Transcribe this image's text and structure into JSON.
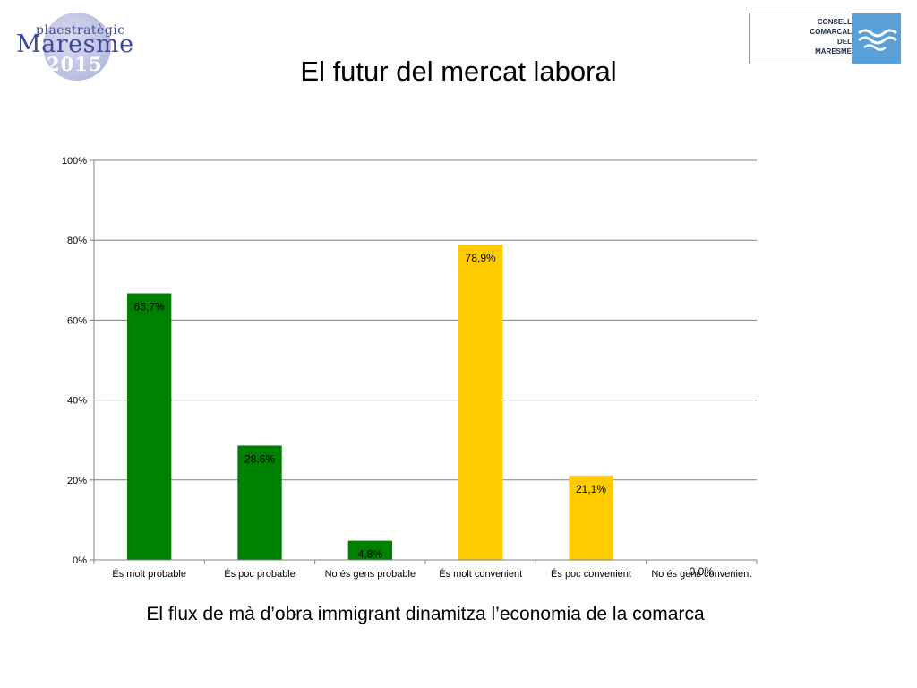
{
  "page_title": "El futur del mercat laboral",
  "caption": "El flux de mà d’obra immigrant dinamitza l’economia de la comarca",
  "logo_left": {
    "line1": "plaestratègic",
    "line2": "Maresme",
    "line3": "2015"
  },
  "logo_right": {
    "lines": [
      "CONSELL",
      "COMARCAL",
      "DEL",
      "MARESME"
    ]
  },
  "colors": {
    "green": "#008000",
    "yellow": "#ffcc00",
    "grid": "#808080",
    "axis": "#808080"
  },
  "chart_data": {
    "type": "bar",
    "title": "",
    "xlabel": "",
    "ylabel": "",
    "categories": [
      "És molt probable",
      "És poc probable",
      "No és gens probable",
      "És molt convenient",
      "És poc convenient",
      "No és gens convenient"
    ],
    "values": [
      66.7,
      28.6,
      4.8,
      78.9,
      21.1,
      0.0
    ],
    "value_labels": [
      "66,7%",
      "28,6%",
      "4,8%",
      "78,9%",
      "21,1%",
      "0,0%"
    ],
    "bar_colors": [
      "#008000",
      "#008000",
      "#008000",
      "#ffcc00",
      "#ffcc00",
      "#ffcc00"
    ],
    "ylim": [
      0,
      100
    ],
    "yticks": [
      0,
      20,
      40,
      60,
      80,
      100
    ],
    "ytick_labels": [
      "0%",
      "20%",
      "40%",
      "60%",
      "80%",
      "100%"
    ],
    "grid": true,
    "legend": "none"
  }
}
